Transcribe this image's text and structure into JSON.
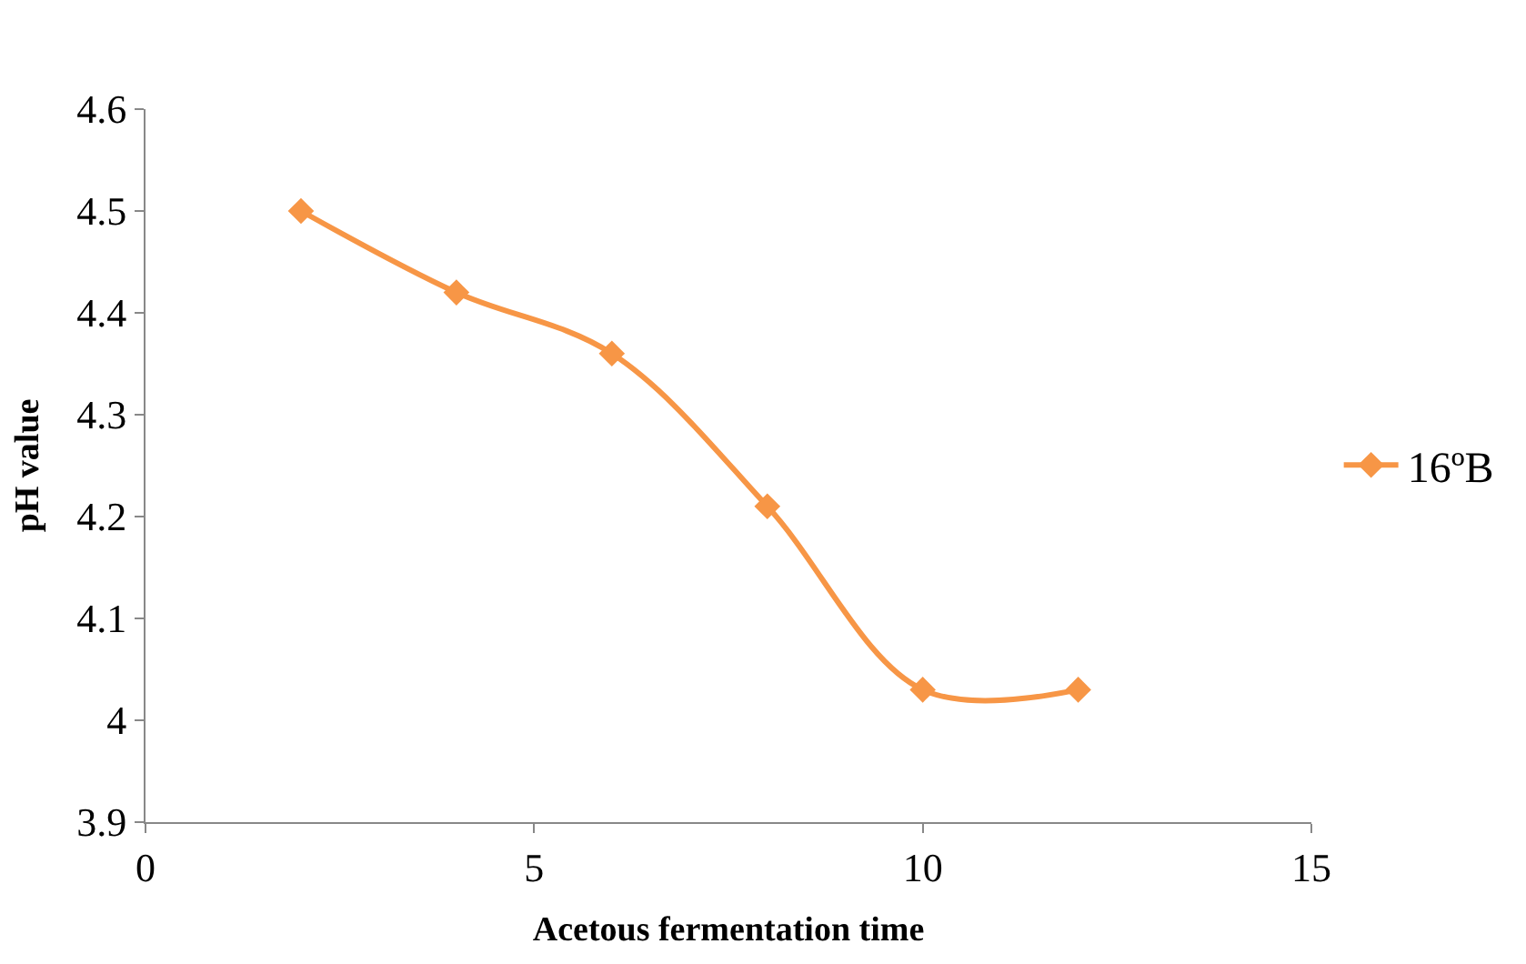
{
  "chart_data": {
    "type": "line",
    "xlabel": "Acetous fermentation time",
    "ylabel": "pH value",
    "x": [
      2,
      4,
      6,
      8,
      10,
      12
    ],
    "series": [
      {
        "name": "16ºB",
        "color": "#f79646",
        "values": [
          4.5,
          4.42,
          4.36,
          4.21,
          4.03,
          4.03
        ]
      }
    ],
    "xlim": [
      0,
      15
    ],
    "xticks": [
      0,
      5,
      10,
      15
    ],
    "ylim": [
      3.9,
      4.6
    ],
    "yticks": [
      3.9,
      {
        "value": 4.0,
        "label": "4"
      },
      4.1,
      4.2,
      4.3,
      4.4,
      4.5,
      4.6
    ],
    "legend": "right",
    "marker": "diamond",
    "line_style": "solid"
  }
}
